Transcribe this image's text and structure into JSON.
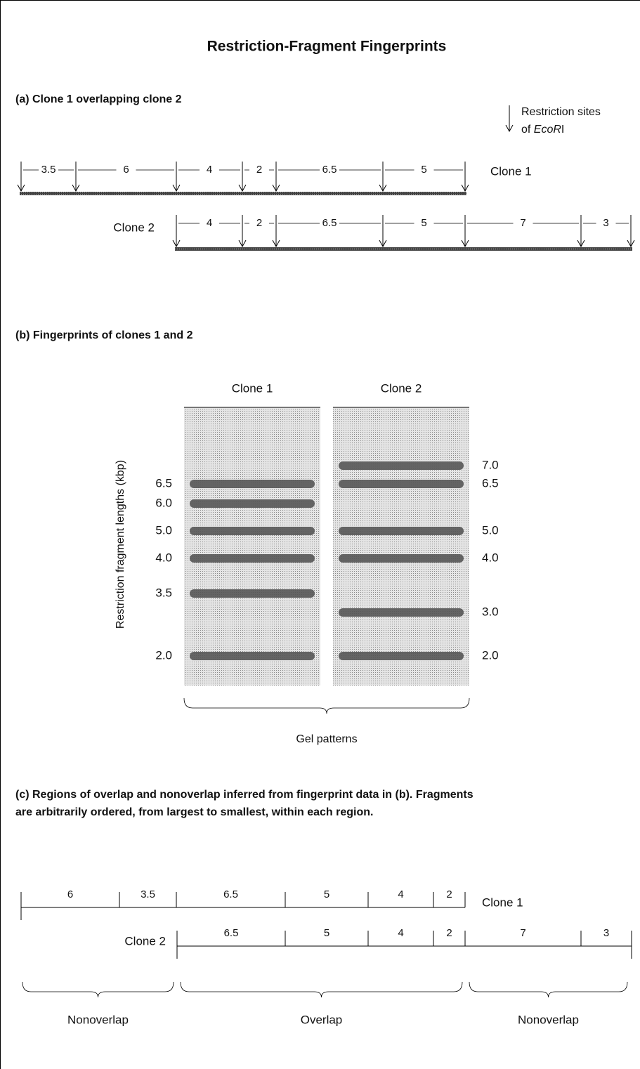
{
  "title": "Restriction-Fragment Fingerprints",
  "panel_a": {
    "heading": "(a)  Clone 1 overlapping clone 2",
    "legend": {
      "line1": "Restriction sites",
      "line2_prefix": "of ",
      "enzyme_italic": "EcoR",
      "enzyme_suffix": "I"
    },
    "clone1": {
      "label": "Clone 1",
      "fragments": [
        "3.5",
        "6",
        "4",
        "2",
        "6.5",
        "5"
      ]
    },
    "clone2": {
      "label": "Clone 2",
      "fragments": [
        "4",
        "2",
        "6.5",
        "5",
        "7",
        "3"
      ]
    }
  },
  "panel_b": {
    "heading": "(b)  Fingerprints of clones 1 and 2",
    "lane_labels": [
      "Clone 1",
      "Clone 2"
    ],
    "axis_label": "Restriction fragment lengths (kbp)",
    "left_labels": [
      "6.5",
      "6.0",
      "5.0",
      "4.0",
      "3.5",
      "2.0"
    ],
    "right_labels": [
      "7.0",
      "6.5",
      "5.0",
      "4.0",
      "3.0",
      "2.0"
    ],
    "caption": "Gel patterns"
  },
  "panel_c": {
    "heading_lines": [
      "(c)  Regions of overlap and nonoverlap inferred from fingerprint data in (b).  Fragments",
      "are arbitrarily ordered, from largest to smallest, within each region."
    ],
    "clone1": {
      "label": "Clone 1",
      "fragments": [
        "6",
        "3.5",
        "6.5",
        "5",
        "4",
        "2"
      ]
    },
    "clone2": {
      "label": "Clone 2",
      "fragments": [
        "6.5",
        "5",
        "4",
        "2",
        "7",
        "3"
      ]
    },
    "regions": [
      "Nonoverlap",
      "Overlap",
      "Nonoverlap"
    ]
  }
}
